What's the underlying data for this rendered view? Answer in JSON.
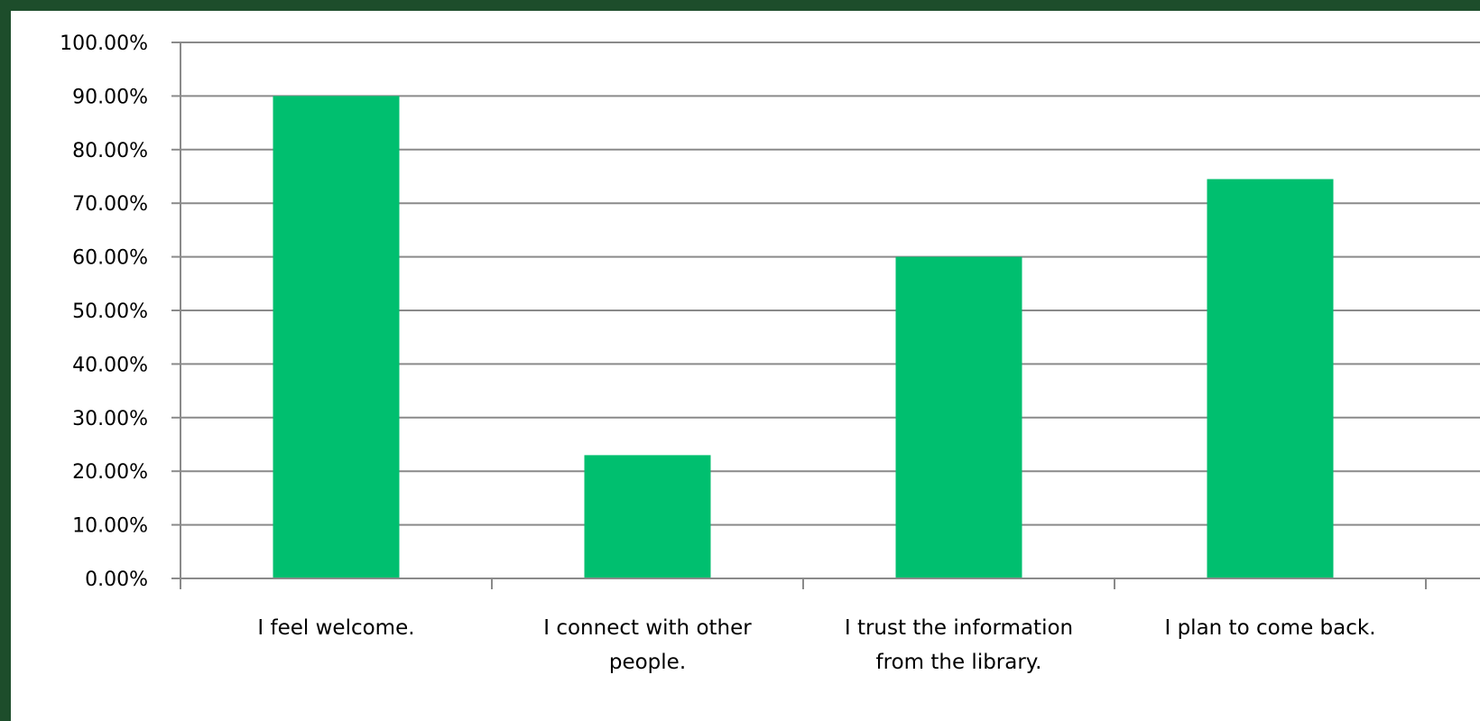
{
  "colors": {
    "bar": "#00bf6f",
    "gridline": "#8a8a8a",
    "axis": "#8a8a8a",
    "frame": "#1d4d2b"
  },
  "chart_data": {
    "type": "bar",
    "title": "",
    "xlabel": "",
    "ylabel": "",
    "ylim": [
      0,
      1.0
    ],
    "ytick_step": 0.1,
    "grid": true,
    "legend": "none",
    "yticks": [
      "0.00%",
      "10.00%",
      "20.00%",
      "30.00%",
      "40.00%",
      "50.00%",
      "60.00%",
      "70.00%",
      "80.00%",
      "90.00%",
      "100.00%"
    ],
    "categories": [
      [
        "I feel welcome."
      ],
      [
        "I connect with other",
        "people."
      ],
      [
        "I trust the information",
        "from the library."
      ],
      [
        "I plan to come back."
      ]
    ],
    "values": [
      0.9,
      0.23,
      0.6,
      0.745
    ]
  }
}
